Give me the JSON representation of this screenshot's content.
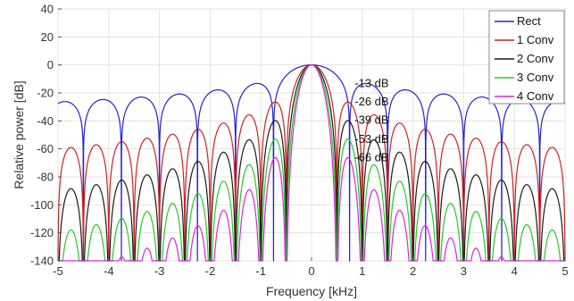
{
  "chart_data": {
    "type": "line",
    "title": "",
    "xlabel": "Frequency [kHz]",
    "ylabel": "Relative power [dB]",
    "xlim": [
      -5,
      5
    ],
    "ylim": [
      -140,
      40
    ],
    "x_ticks": [
      "-5",
      "-4",
      "-3",
      "-2",
      "-1",
      "0",
      "1",
      "2",
      "3",
      "4",
      "5"
    ],
    "y_ticks": [
      "40",
      "20",
      "0",
      "-20",
      "-40",
      "-60",
      "-80",
      "-100",
      "-120",
      "-140"
    ],
    "grid": true,
    "legend_position": "top-right",
    "series": [
      {
        "name": "Rect",
        "color": "#2323d2",
        "main_lobe_null_khz": 0.75,
        "first_sidelobe_db": -13
      },
      {
        "name": "1 Conv",
        "color": "#cc2222",
        "main_lobe_null_khz": 0.5,
        "first_sidelobe_db": -26
      },
      {
        "name": "2 Conv",
        "color": "#1a1a1a",
        "main_lobe_null_khz": 0.5,
        "first_sidelobe_db": -39
      },
      {
        "name": "3 Conv",
        "color": "#22cc22",
        "main_lobe_null_khz": 0.5,
        "first_sidelobe_db": -53
      },
      {
        "name": "4 Conv",
        "color": "#e020e0",
        "main_lobe_null_khz": 0.5,
        "first_sidelobe_db": -66
      }
    ],
    "annotations": [
      {
        "text": "-13 dB",
        "x": 0.85,
        "y": -13
      },
      {
        "text": "-26 dB",
        "x": 0.85,
        "y": -26
      },
      {
        "text": "-39 dB",
        "x": 0.85,
        "y": -39
      },
      {
        "text": "-53 dB",
        "x": 0.85,
        "y": -53
      },
      {
        "text": "-66 dB",
        "x": 0.85,
        "y": -66
      }
    ]
  }
}
